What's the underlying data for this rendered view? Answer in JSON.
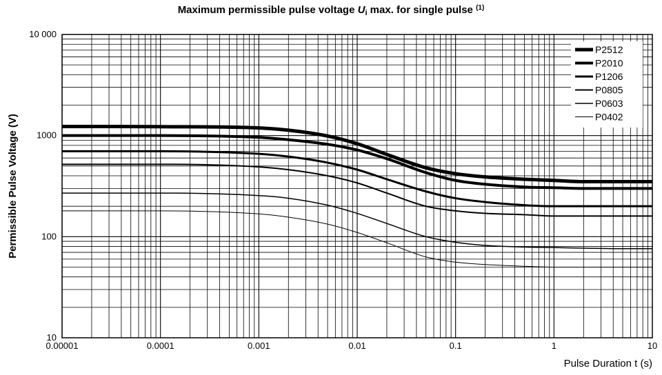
{
  "chart_data": {
    "type": "line",
    "title": "Maximum permissible pulse voltage ",
    "title_symbol": "U",
    "title_symbol_sub": "i",
    "title_rest": " max. for single pulse ",
    "title_note": "(1)",
    "xlabel": "Pulse Duration t (s)",
    "ylabel": "Permissible Pulse Voltage (V)",
    "x_scale": "log",
    "y_scale": "log",
    "xlim": [
      1e-05,
      10
    ],
    "ylim": [
      10,
      10000
    ],
    "x_tick_values": [
      1e-05,
      0.0001,
      0.001,
      0.01,
      0.1,
      1,
      10
    ],
    "x_tick_labels": [
      "0.00001",
      "0.0001",
      "0.001",
      "0.01",
      "0.1",
      "1",
      "10"
    ],
    "y_tick_values": [
      10,
      100,
      1000,
      10000
    ],
    "y_tick_labels": [
      "10",
      "100",
      "1000",
      "10 000"
    ],
    "grid": true,
    "legend_position": "top-right",
    "x": [
      1e-05,
      0.0001,
      0.001,
      0.002,
      0.005,
      0.01,
      0.02,
      0.05,
      0.1,
      0.2,
      0.5,
      1,
      2,
      5,
      10
    ],
    "series": [
      {
        "name": "P2512",
        "values": [
          1230,
          1225,
          1190,
          1130,
          990,
          830,
          650,
          480,
          420,
          390,
          370,
          360,
          350,
          350,
          350
        ]
      },
      {
        "name": "P2010",
        "values": [
          1000,
          1000,
          960,
          910,
          820,
          720,
          590,
          430,
          360,
          330,
          310,
          305,
          300,
          300,
          300
        ]
      },
      {
        "name": "P1206",
        "values": [
          700,
          700,
          660,
          620,
          540,
          460,
          370,
          280,
          240,
          220,
          205,
          200,
          200,
          200,
          200
        ]
      },
      {
        "name": "P0805",
        "values": [
          520,
          520,
          490,
          460,
          400,
          340,
          270,
          200,
          180,
          170,
          165,
          160,
          160,
          160,
          160
        ]
      },
      {
        "name": "P0603",
        "values": [
          270,
          270,
          255,
          240,
          205,
          170,
          135,
          100,
          88,
          82,
          79,
          78,
          77,
          76,
          76
        ]
      },
      {
        "name": "P0402",
        "values": [
          180,
          180,
          168,
          156,
          133,
          110,
          87,
          63,
          56,
          53,
          51,
          50,
          50,
          50,
          50
        ]
      }
    ],
    "line_widths": [
      5,
      4,
      3,
      2,
      1.5,
      1
    ]
  }
}
